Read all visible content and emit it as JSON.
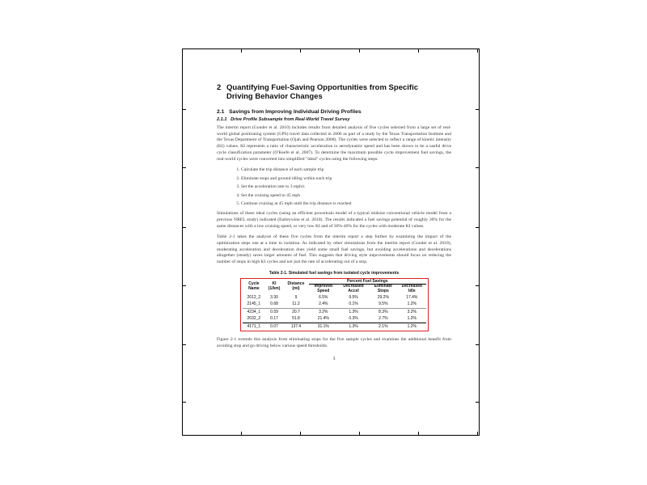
{
  "section": {
    "number": "2",
    "title": "Quantifying Fuel-Saving Opportunities from Specific Driving Behavior Changes"
  },
  "subsection": {
    "number": "2.1",
    "title": "Savings from Improving Individual Driving Profiles"
  },
  "subsubsection": {
    "number": "2.1.1",
    "title": "Drive Profile Subsample from Real-World Travel Survey"
  },
  "paragraphs": [
    "The interim report (Gonder et al. 2010) includes results from detailed analysis of five cycles selected from a large set of real-world global positioning system (GPS) travel data collected in 2006 as part of a study by the Texas Transportation Institute and the Texas Department of Transportation (Ojah and Pearson 2008). The cycles were selected to reflect a range of kinetic intensity (KI) values. KI represents a ratio of characteristic acceleration to aerodynamic speed and has been shown to be a useful drive cycle classification parameter (O'Keefe et al. 2007). To determine the maximum possible cycle improvement fuel savings, the real-world cycles were converted into simplified \"ideal\" cycles using the following steps:"
  ],
  "steps": [
    "Calculate the trip distance of each sample trip",
    "Eliminate stops and ground idling within each trip",
    "Set the acceleration rate to 3 mph/s",
    "Set the cruising speed to 45 mph",
    "Continue cruising at 45 mph until the trip distance is reached"
  ],
  "paragraphs2": [
    "Simulations of these ideal cycles (using an efficient powertrain model of a typical midsize conventional vehicle model from a previous NREL study) indicated (Earleywine et al. 2010). The results indicated a fuel savings potential of roughly 30% for the same distances with a low cruising speed, or very low KI and of 30%-40% for the cycles with moderate KI values.",
    "Table 2-1 takes the analysis of these five cycles from the interim report a step further by examining the impact of the optimization steps one at a time in isolation. As indicated by other simulations from the interim report (Gonder et al. 2010), moderating acceleration and deceleration does yield some small fuel savings, but avoiding accelerations and decelerations altogether (steady) saves larger amounts of fuel. This suggests that driving style improvements should focus on reducing the number of stops in high KI cycles and not just the rate of accelerating out of a stop."
  ],
  "table": {
    "caption": "Table 2-1. Simulated fuel savings from isolated cycle improvements",
    "group_header": "Percent Fuel Savings",
    "headers": [
      "Cycle Name",
      "KI (1/km)",
      "Distance (mi)",
      "Improved Speed",
      "Decreased Accel",
      "Eliminate Stops",
      "Decreased Idle"
    ],
    "rows": [
      [
        "2012_2",
        "3.30",
        "9",
        "6.5%",
        "9.5%",
        "29.2%",
        "17.4%"
      ],
      [
        "2145_1",
        "0.68",
        "11.2",
        "2.4%",
        "0.1%",
        "9.5%",
        "1.2%"
      ],
      [
        "4234_1",
        "0.59",
        "20.7",
        "3.2%",
        "1.3%",
        "8.3%",
        "3.2%"
      ],
      [
        "2032_2",
        "0.17",
        "51.8",
        "21.4%",
        "0.3%",
        "2.7%",
        "1.2%"
      ],
      [
        "4171_1",
        "0.07",
        "137.4",
        "31.1%",
        "1.3%",
        "2.1%",
        "1.2%"
      ]
    ]
  },
  "figure_caption": "Figure 2-1 extends this analysis from eliminating stops for the five sample cycles and examines the additional benefit from avoiding stop and go driving below various speed thresholds.",
  "page_number": "3",
  "colors": {
    "table_highlight": "#e02020"
  }
}
